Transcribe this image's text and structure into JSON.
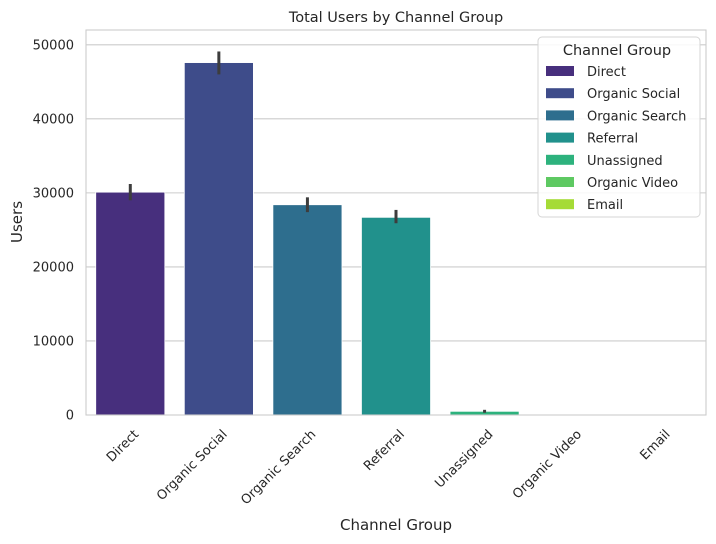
{
  "chart_data": {
    "type": "bar",
    "title": "Total Users by Channel Group",
    "xlabel": "Channel Group",
    "ylabel": "Users",
    "ylim": [
      0,
      52000
    ],
    "yticks": [
      0,
      10000,
      20000,
      30000,
      40000,
      50000
    ],
    "ytick_labels": [
      "0",
      "10000",
      "20000",
      "30000",
      "40000",
      "50000"
    ],
    "grid": "horizontal",
    "categories": [
      "Direct",
      "Organic Social",
      "Organic Search",
      "Referral",
      "Unassigned",
      "Organic Video",
      "Email"
    ],
    "values": [
      30100,
      47600,
      28400,
      26700,
      500,
      5,
      2
    ],
    "error_low": [
      29000,
      46000,
      27400,
      25900,
      300,
      5,
      2
    ],
    "error_high": [
      31200,
      49100,
      29400,
      27700,
      700,
      5,
      2
    ],
    "colors": [
      "#472f7d",
      "#3e4c8a",
      "#2e6e8e",
      "#21918c",
      "#2db27d",
      "#5ec962",
      "#a5db36"
    ],
    "legend": {
      "title": "Channel Group",
      "position": "top-right",
      "entries": [
        "Direct",
        "Organic Social",
        "Organic Search",
        "Referral",
        "Unassigned",
        "Organic Video",
        "Email"
      ]
    }
  }
}
